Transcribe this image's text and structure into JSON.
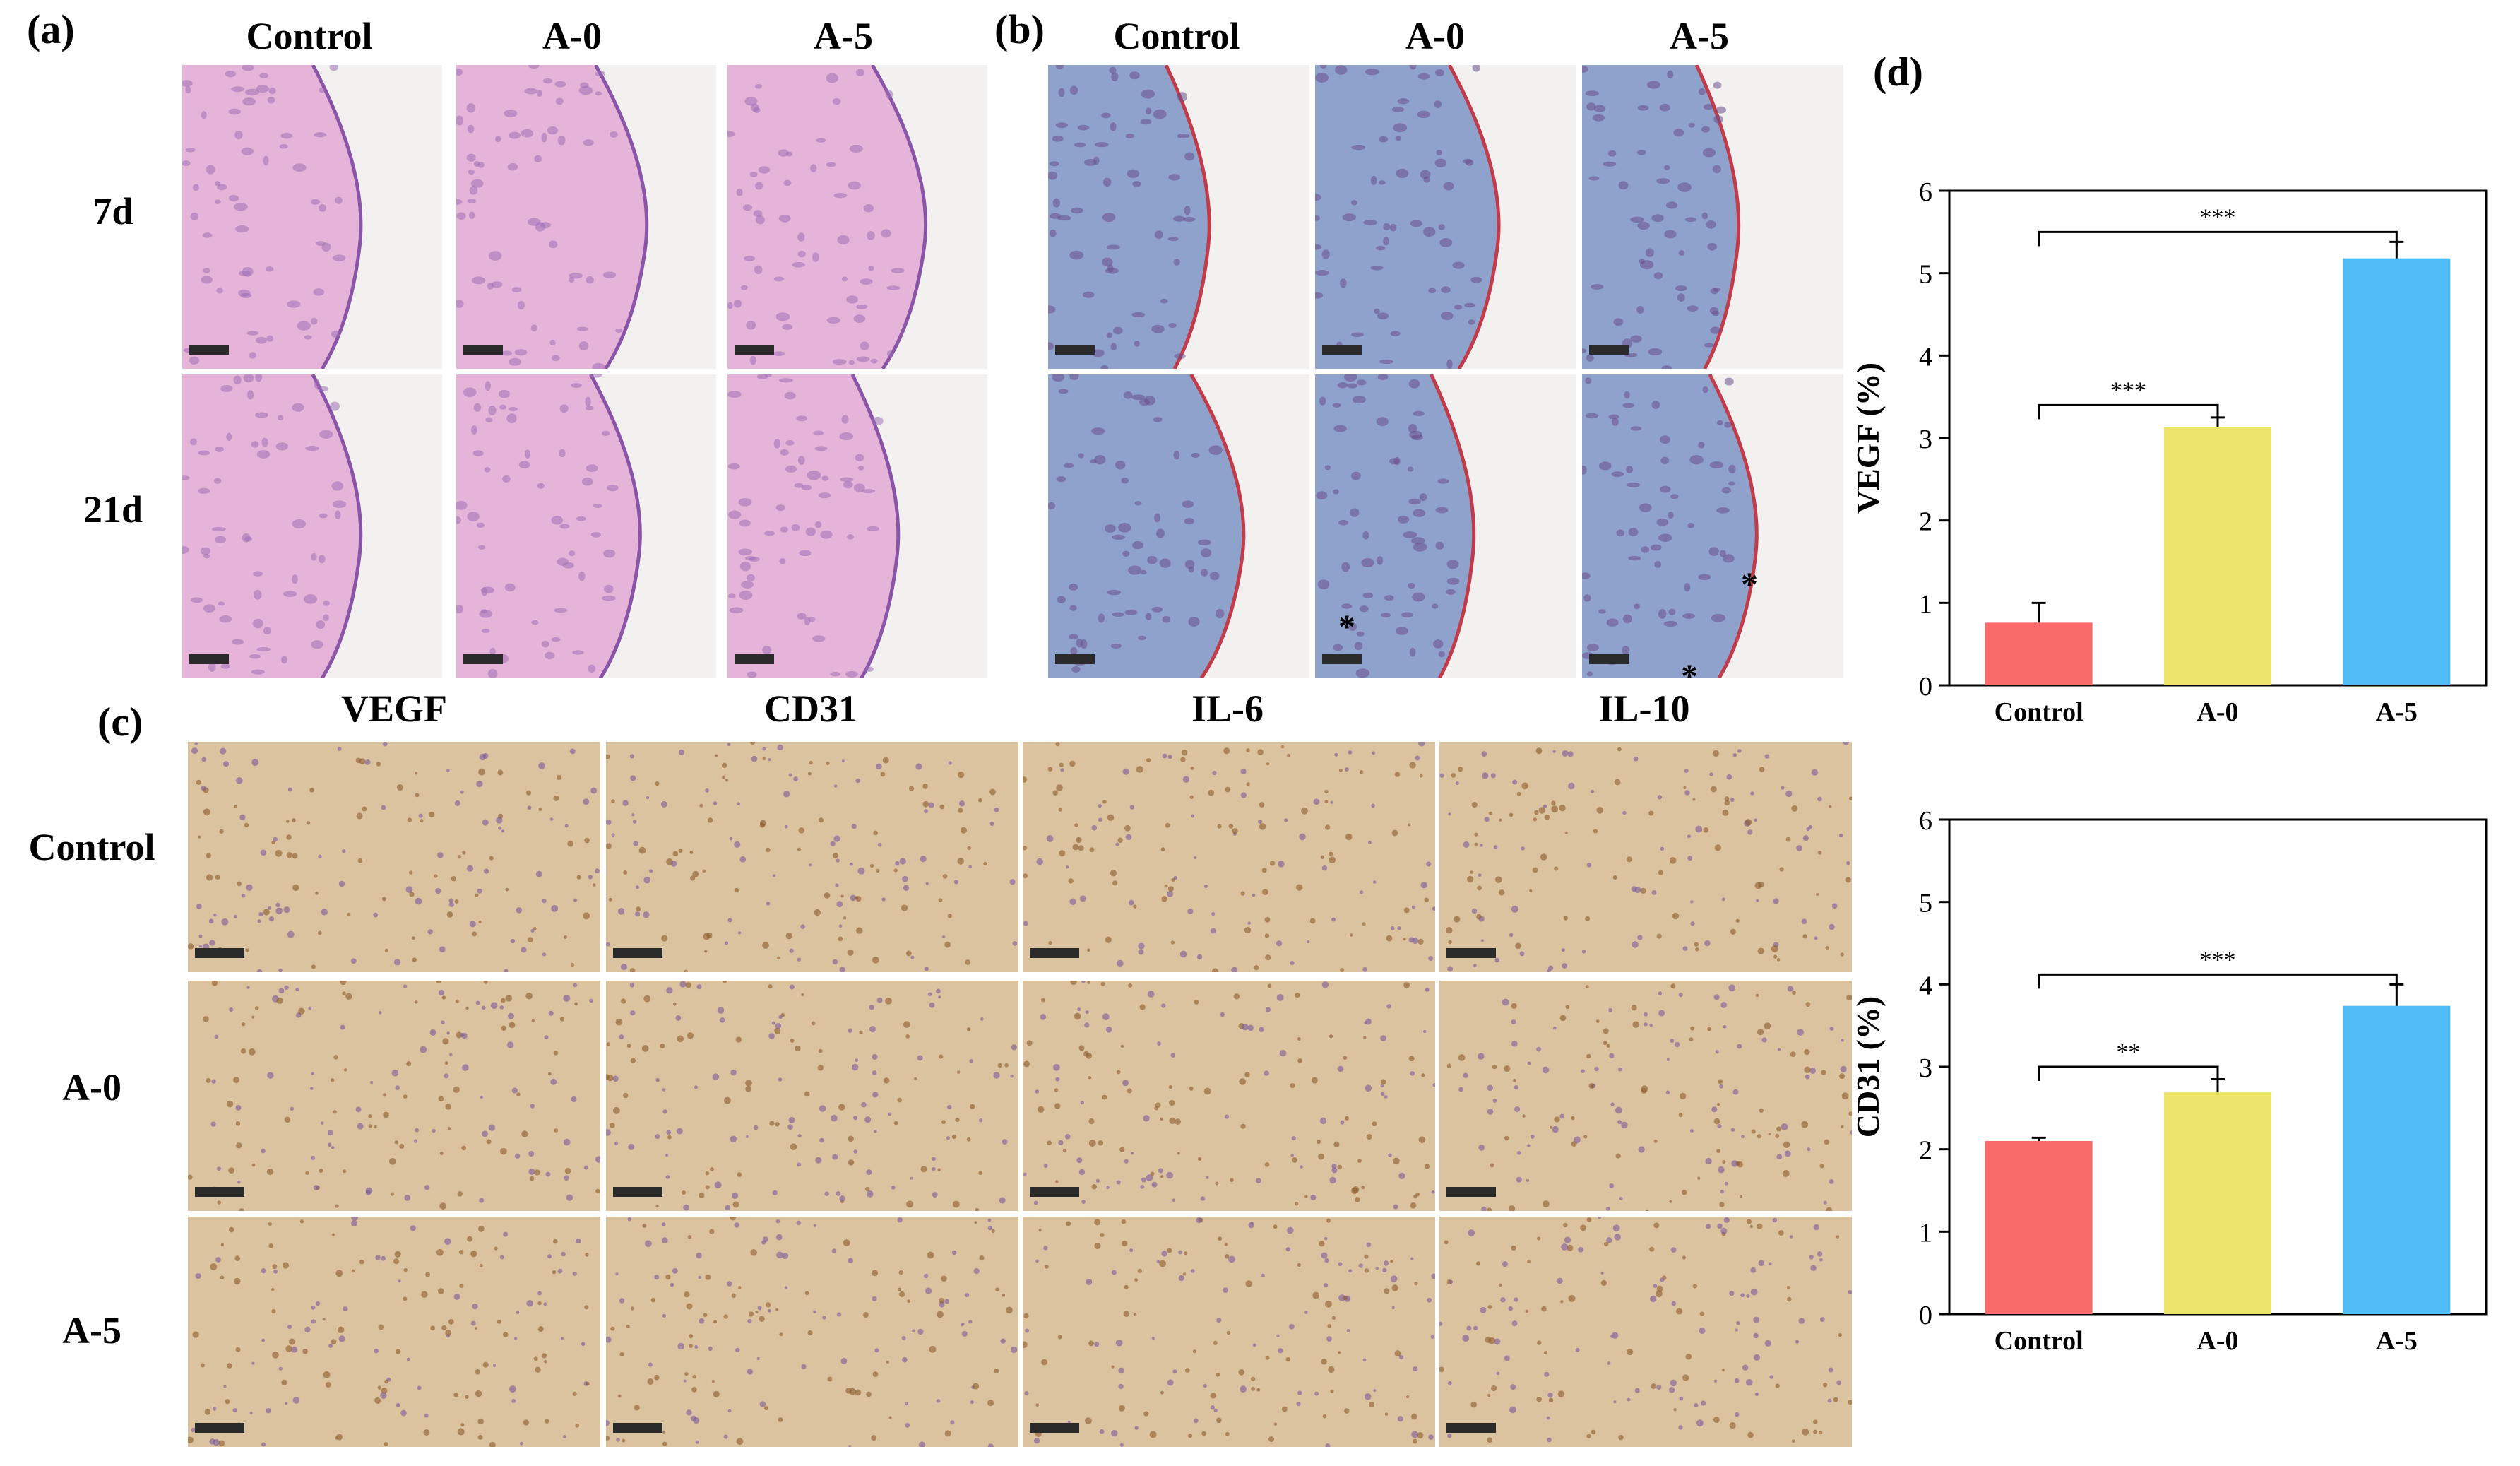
{
  "panel_a": {
    "label": "(a)",
    "columns": [
      "Control",
      "A-0",
      "A-5"
    ],
    "rows": [
      "7d",
      "21d"
    ],
    "stain": "he"
  },
  "panel_b": {
    "label": "(b)",
    "columns": [
      "Control",
      "A-0",
      "A-5"
    ],
    "stain": "masson",
    "annotations": [
      "*",
      "*",
      "*"
    ]
  },
  "panel_c": {
    "label": "(c)",
    "columns": [
      "VEGF",
      "CD31",
      "IL-6",
      "IL-10"
    ],
    "rows": [
      "Control",
      "A-0",
      "A-5"
    ]
  },
  "panel_d": {
    "label": "(d)"
  },
  "colors": {
    "control": "#f96b6b",
    "a0": "#ece36a",
    "a5": "#4fbcf7",
    "he_pink": "#e6b4d8",
    "masson_blue": "#8fa2cc",
    "ihc_brown": "#dcc3a0",
    "arrow_green": "#27b547",
    "arrow_orange": "#f5a623"
  },
  "chart_data": [
    {
      "type": "bar",
      "categories": [
        "Control",
        "A-0",
        "A-5"
      ],
      "values": [
        0.76,
        3.13,
        5.18
      ],
      "errors": [
        0.24,
        0.12,
        0.2
      ],
      "ylabel": "VEGF (%)",
      "ylim": [
        0,
        6
      ],
      "yticks": [
        "0",
        "1",
        "2",
        "3",
        "4",
        "5",
        "6"
      ],
      "significance": [
        {
          "from": 0,
          "to": 1,
          "label": "***"
        },
        {
          "from": 0,
          "to": 2,
          "label": "***"
        }
      ]
    },
    {
      "type": "bar",
      "categories": [
        "Control",
        "A-0",
        "A-5"
      ],
      "values": [
        2.1,
        2.69,
        3.74
      ],
      "errors": [
        0.04,
        0.16,
        0.26
      ],
      "ylabel": "CD31 (%)",
      "ylim": [
        0,
        6
      ],
      "yticks": [
        "0",
        "1",
        "2",
        "3",
        "4",
        "5",
        "6"
      ],
      "significance": [
        {
          "from": 0,
          "to": 1,
          "label": "**"
        },
        {
          "from": 0,
          "to": 2,
          "label": "***"
        }
      ]
    }
  ]
}
